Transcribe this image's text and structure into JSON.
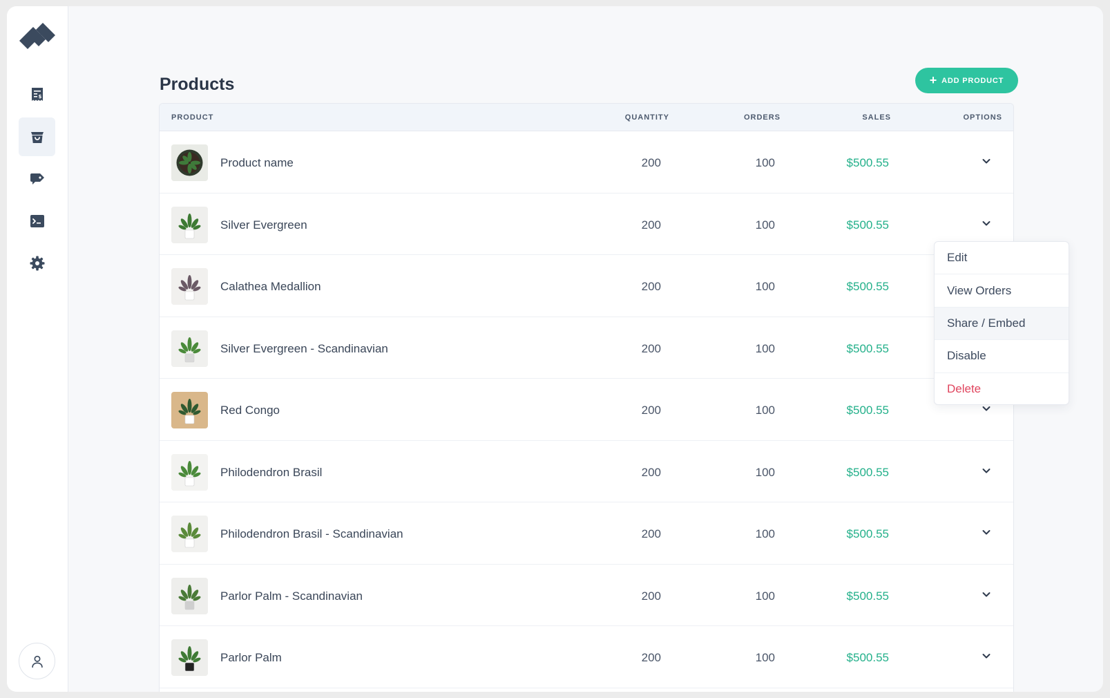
{
  "sidebar": {
    "logo_icon": "brand-logo-icon",
    "nav": [
      {
        "id": "invoices",
        "icon": "receipt-icon",
        "active": false
      },
      {
        "id": "products",
        "icon": "shopping-bag-icon",
        "active": true
      },
      {
        "id": "discounts",
        "icon": "tag-icon",
        "active": false
      },
      {
        "id": "developer",
        "icon": "terminal-icon",
        "active": false
      },
      {
        "id": "settings",
        "icon": "gear-icon",
        "active": false
      }
    ],
    "user_icon": "user-icon"
  },
  "header": {
    "title": "Products",
    "add_button_label": "ADD PRODUCT",
    "add_button_icon": "plus-icon"
  },
  "table": {
    "columns": {
      "product": "PRODUCT",
      "quantity": "QUANTITY",
      "orders": "ORDERS",
      "sales": "SALES",
      "options": "OPTIONS"
    },
    "rows": [
      {
        "name": "Product name",
        "quantity": "200",
        "orders": "100",
        "sales": "$500.55"
      },
      {
        "name": "Silver Evergreen",
        "quantity": "200",
        "orders": "100",
        "sales": "$500.55"
      },
      {
        "name": "Calathea Medallion",
        "quantity": "200",
        "orders": "100",
        "sales": "$500.55"
      },
      {
        "name": "Silver Evergreen - Scandinavian",
        "quantity": "200",
        "orders": "100",
        "sales": "$500.55"
      },
      {
        "name": "Red Congo",
        "quantity": "200",
        "orders": "100",
        "sales": "$500.55"
      },
      {
        "name": "Philodendron Brasil",
        "quantity": "200",
        "orders": "100",
        "sales": "$500.55"
      },
      {
        "name": "Philodendron Brasil - Scandinavian",
        "quantity": "200",
        "orders": "100",
        "sales": "$500.55"
      },
      {
        "name": "Parlor Palm - Scandinavian",
        "quantity": "200",
        "orders": "100",
        "sales": "$500.55"
      },
      {
        "name": "Parlor Palm",
        "quantity": "200",
        "orders": "100",
        "sales": "$500.55"
      }
    ]
  },
  "options_menu": {
    "items": [
      {
        "label": "Edit"
      },
      {
        "label": "View Orders"
      },
      {
        "label": "Share / Embed"
      },
      {
        "label": "Disable"
      },
      {
        "label": "Delete"
      }
    ]
  },
  "colors": {
    "accent": "#2ec4a0",
    "sales_text": "#23b08a",
    "danger": "#e0455e",
    "nav_icon": "#3b4a5e"
  }
}
